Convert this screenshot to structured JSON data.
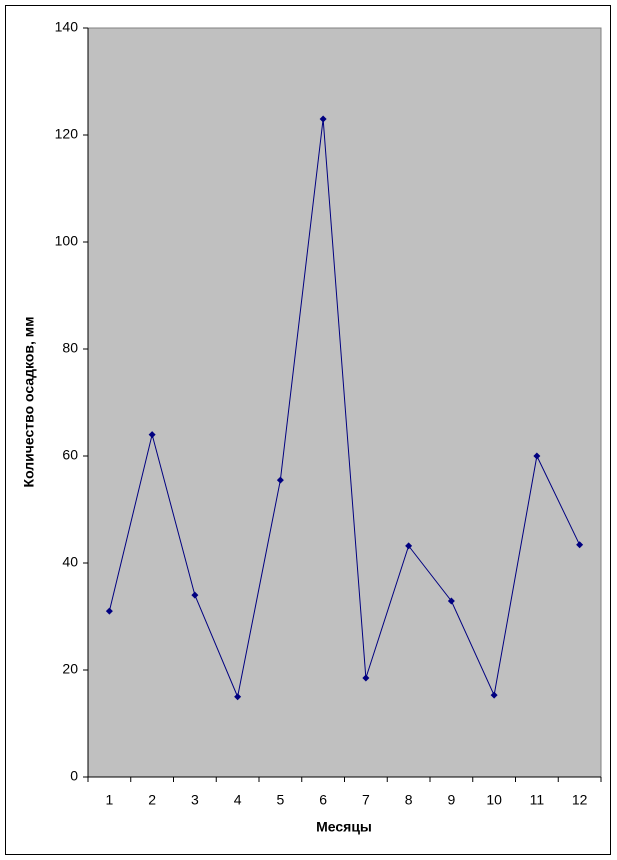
{
  "chart_data": {
    "type": "line",
    "x_label": "Месяцы",
    "y_label": "Количество осадков, мм",
    "categories": [
      "1",
      "2",
      "3",
      "4",
      "5",
      "6",
      "7",
      "8",
      "9",
      "10",
      "11",
      "12"
    ],
    "values": [
      31,
      64,
      34,
      15,
      55.5,
      123,
      18.5,
      43.2,
      32.9,
      15.3,
      60,
      43.4
    ],
    "color": "#000080",
    "ylim": [
      0,
      140
    ],
    "yticks": [
      0,
      20,
      40,
      60,
      80,
      100,
      120,
      140
    ]
  }
}
